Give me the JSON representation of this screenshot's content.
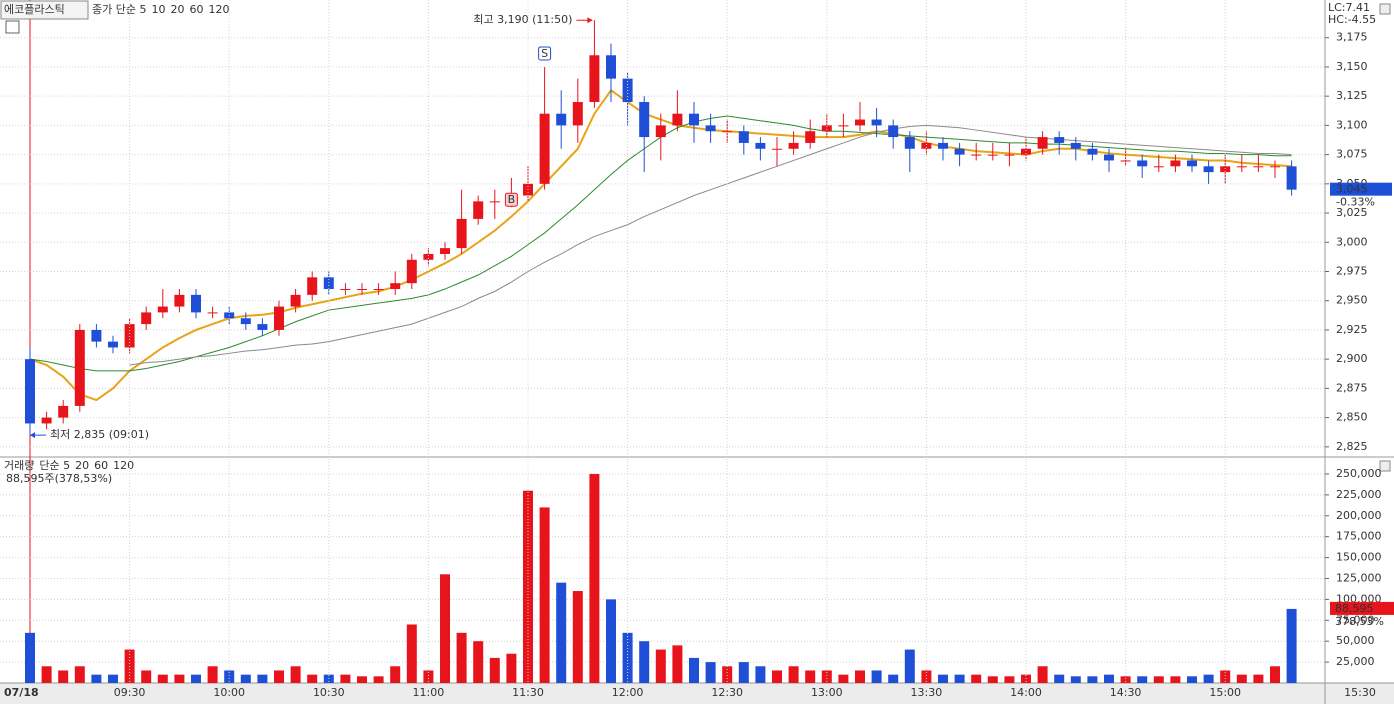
{
  "chart_data": [
    {
      "type": "candlestick",
      "title": "에코플라스틱",
      "legend_label": "종가 단순 5",
      "ma_legend": [
        {
          "name": "10",
          "color": "#1c1c8c"
        }
      ],
      "stats": [
        "LC:7.41",
        "HC:-4.55"
      ],
      "up_color": "#e8141c",
      "down_color": "#1f4fd6",
      "open": [
        2900,
        2845,
        2850,
        2860,
        2925,
        2915,
        2910,
        2930,
        2940,
        2945,
        2955,
        2940,
        2940,
        2935,
        2930,
        2925,
        2945,
        2955,
        2970,
        2960,
        2960,
        2960,
        2960,
        2965,
        2985,
        2990,
        2995,
        3020,
        3035,
        3035,
        3040,
        3050,
        3110,
        3100,
        3120,
        3160,
        3140,
        3120,
        3090,
        3100,
        3110,
        3100,
        3095,
        3095,
        3085,
        3080,
        3080,
        3085,
        3095,
        3100,
        3100,
        3105,
        3100,
        3090,
        3080,
        3085,
        3080,
        3075,
        3075,
        3075,
        3075,
        3080,
        3090,
        3085,
        3080,
        3075,
        3070,
        3070,
        3065,
        3065,
        3070,
        3065,
        3060,
        3065,
        3065,
        3065,
        3065
      ],
      "high": [
        2910,
        2855,
        2865,
        2930,
        2930,
        2920,
        2935,
        2945,
        2960,
        2960,
        2960,
        2945,
        2945,
        2940,
        2935,
        2950,
        2960,
        2975,
        2975,
        2965,
        2965,
        2965,
        2975,
        2990,
        2995,
        3000,
        3045,
        3040,
        3045,
        3055,
        3065,
        3150,
        3130,
        3140,
        3190,
        3170,
        3145,
        3125,
        3110,
        3130,
        3120,
        3110,
        3105,
        3100,
        3090,
        3090,
        3095,
        3105,
        3110,
        3110,
        3120,
        3115,
        3105,
        3095,
        3095,
        3090,
        3085,
        3085,
        3085,
        3085,
        3090,
        3095,
        3095,
        3090,
        3085,
        3080,
        3080,
        3075,
        3075,
        3075,
        3075,
        3070,
        3075,
        3075,
        3075,
        3070,
        3070
      ],
      "low": [
        2835,
        2840,
        2845,
        2855,
        2910,
        2905,
        2905,
        2925,
        2935,
        2940,
        2935,
        2935,
        2930,
        2925,
        2920,
        2920,
        2940,
        2950,
        2955,
        2955,
        2955,
        2955,
        2955,
        2960,
        2980,
        2985,
        2990,
        3015,
        3020,
        3030,
        3035,
        3045,
        3080,
        3085,
        3115,
        3120,
        3100,
        3060,
        3070,
        3095,
        3085,
        3085,
        3085,
        3075,
        3070,
        3065,
        3075,
        3080,
        3090,
        3090,
        3095,
        3090,
        3080,
        3060,
        3075,
        3070,
        3065,
        3070,
        3070,
        3065,
        3070,
        3075,
        3075,
        3070,
        3070,
        3060,
        3065,
        3055,
        3060,
        3060,
        3060,
        3050,
        3050,
        3060,
        3060,
        3055,
        3040
      ],
      "close": [
        2845,
        2850,
        2860,
        2925,
        2915,
        2910,
        2930,
        2940,
        2945,
        2955,
        2940,
        2940,
        2935,
        2930,
        2925,
        2945,
        2955,
        2970,
        2960,
        2960,
        2960,
        2960,
        2965,
        2985,
        2990,
        2995,
        3020,
        3035,
        3035,
        3040,
        3050,
        3110,
        3100,
        3120,
        3160,
        3140,
        3120,
        3090,
        3100,
        3110,
        3100,
        3095,
        3095,
        3085,
        3080,
        3080,
        3085,
        3095,
        3100,
        3100,
        3105,
        3100,
        3090,
        3080,
        3085,
        3080,
        3075,
        3075,
        3075,
        3075,
        3080,
        3090,
        3085,
        3080,
        3075,
        3070,
        3070,
        3065,
        3065,
        3070,
        3065,
        3060,
        3065,
        3065,
        3065,
        3065,
        3045
      ],
      "series": [
        {
          "name": "20",
          "color": "#e8a317",
          "values": [
            2900,
            2895,
            2885,
            2870,
            2865,
            2875,
            2890,
            2900,
            2910,
            2918,
            2925,
            2930,
            2935,
            2937,
            2938,
            2940,
            2944,
            2947,
            2950,
            2953,
            2956,
            2958,
            2962,
            2968,
            2975,
            2982,
            2990,
            3000,
            3010,
            3022,
            3035,
            3050,
            3065,
            3080,
            3110,
            3130,
            3120,
            3110,
            3105,
            3100,
            3098,
            3096,
            3095,
            3094,
            3093,
            3092,
            3091,
            3090,
            3090,
            3090,
            3092,
            3095,
            3093,
            3090,
            3085,
            3082,
            3080,
            3078,
            3077,
            3076,
            3075,
            3078,
            3080,
            3080,
            3078,
            3076,
            3075,
            3074,
            3073,
            3072,
            3071,
            3070,
            3070,
            3068,
            3067,
            3066,
            3065
          ]
        },
        {
          "name": "60",
          "color": "#2e8b2e",
          "values": [
            2900,
            2898,
            2895,
            2892,
            2890,
            2890,
            2890,
            2892,
            2895,
            2898,
            2902,
            2906,
            2910,
            2915,
            2920,
            2926,
            2932,
            2937,
            2942,
            2944,
            2946,
            2948,
            2950,
            2952,
            2955,
            2960,
            2966,
            2972,
            2980,
            2988,
            2998,
            3008,
            3020,
            3032,
            3045,
            3058,
            3070,
            3080,
            3090,
            3098,
            3103,
            3106,
            3108,
            3106,
            3104,
            3102,
            3100,
            3097,
            3095,
            3095,
            3094,
            3093,
            3092,
            3091,
            3090,
            3089,
            3088,
            3087,
            3086,
            3085,
            3085,
            3084,
            3084,
            3083,
            3082,
            3081,
            3080,
            3079,
            3078,
            3078,
            3077,
            3076,
            3076,
            3075,
            3075,
            3074,
            3074
          ]
        },
        {
          "name": "120",
          "color": "#8a8a8a",
          "values": [
            null,
            null,
            null,
            null,
            null,
            null,
            2895,
            2897,
            2898,
            2900,
            2902,
            2903,
            2905,
            2907,
            2908,
            2910,
            2912,
            2913,
            2915,
            2918,
            2921,
            2924,
            2927,
            2930,
            2935,
            2940,
            2945,
            2952,
            2958,
            2966,
            2975,
            2983,
            2990,
            2998,
            3005,
            3010,
            3015,
            3022,
            3028,
            3034,
            3040,
            3045,
            3050,
            3055,
            3060,
            3065,
            3070,
            3075,
            3080,
            3085,
            3090,
            3094,
            3097,
            3099,
            3100,
            3099,
            3098,
            3096,
            3094,
            3092,
            3090,
            3089,
            3088,
            3087,
            3086,
            3085,
            3084,
            3083,
            3082,
            3081,
            3080,
            3079,
            3078,
            3077,
            3076,
            3076,
            3075
          ]
        }
      ],
      "high_label": "최고 3,190 (11:50)",
      "low_label": "최저 2,835 (09:01)",
      "signals": [
        {
          "label": "B",
          "index": 29
        },
        {
          "label": "S",
          "index": 31
        }
      ],
      "last_price": 3045,
      "last_price_label": "3,045",
      "change_label": "-0.33%",
      "ylim": [
        2818,
        3203
      ],
      "yticks": [
        {
          "value": 2825,
          "label": "2,825"
        },
        {
          "value": 2850,
          "label": "2,850"
        },
        {
          "value": 2875,
          "label": "2,875"
        },
        {
          "value": 2900,
          "label": "2,900"
        },
        {
          "value": 2925,
          "label": "2,925"
        },
        {
          "value": 2950,
          "label": "2,950"
        },
        {
          "value": 2975,
          "label": "2,975"
        },
        {
          "value": 3000,
          "label": "3,000"
        },
        {
          "value": 3025,
          "label": "3,025"
        },
        {
          "value": 3050,
          "label": "3,050"
        },
        {
          "value": 3075,
          "label": "3,075"
        },
        {
          "value": 3100,
          "label": "3,100"
        },
        {
          "value": 3125,
          "label": "3,125"
        },
        {
          "value": 3150,
          "label": "3,150"
        },
        {
          "value": 3175,
          "label": "3,175"
        }
      ],
      "grid": true
    },
    {
      "type": "bar",
      "title": "거래량",
      "legend_label": "단순 5",
      "ma_legend": [
        {
          "name": "20",
          "color": "#e8a317"
        },
        {
          "name": "60",
          "color": "#2e8b2e"
        },
        {
          "name": "120",
          "color": "#8a8a8a"
        }
      ],
      "summary": "88,595주(378,53%)",
      "categories": [
        "07/18",
        null,
        null,
        null,
        null,
        null,
        "09:30",
        null,
        null,
        null,
        null,
        null,
        "10:00",
        null,
        null,
        null,
        null,
        null,
        "10:30",
        null,
        null,
        null,
        null,
        null,
        "11:00",
        null,
        null,
        null,
        null,
        null,
        "11:30",
        null,
        null,
        null,
        null,
        null,
        "12:00",
        null,
        null,
        null,
        null,
        null,
        "12:30",
        null,
        null,
        null,
        null,
        null,
        "13:00",
        null,
        null,
        null,
        null,
        null,
        "13:30",
        null,
        null,
        null,
        null,
        null,
        "14:00",
        null,
        null,
        null,
        null,
        null,
        "14:30",
        null,
        null,
        null,
        null,
        null,
        "15:00",
        null,
        null,
        null,
        null
      ],
      "x_end_label": "15:30",
      "values": [
        60000,
        20000,
        15000,
        20000,
        10000,
        10000,
        40000,
        15000,
        10000,
        10000,
        10000,
        20000,
        15000,
        10000,
        10000,
        15000,
        20000,
        10000,
        10000,
        10000,
        8000,
        8000,
        20000,
        70000,
        15000,
        130000,
        60000,
        50000,
        30000,
        35000,
        230000,
        210000,
        120000,
        110000,
        250000,
        100000,
        60000,
        50000,
        40000,
        45000,
        30000,
        25000,
        20000,
        25000,
        20000,
        15000,
        20000,
        15000,
        15000,
        10000,
        15000,
        15000,
        10000,
        40000,
        15000,
        10000,
        10000,
        10000,
        8000,
        8000,
        10000,
        20000,
        10000,
        8000,
        8000,
        10000,
        8000,
        8000,
        8000,
        8000,
        8000,
        10000,
        15000,
        10000,
        10000,
        20000,
        88595
      ],
      "last_value_label": "88,595",
      "last_ratio_label": "378,53%",
      "ylim": [
        0,
        266700
      ],
      "yticks": [
        {
          "value": 25000,
          "label": "25,000"
        },
        {
          "value": 50000,
          "label": "50,000"
        },
        {
          "value": 75000,
          "label": "75,000"
        },
        {
          "value": 100000,
          "label": "100,000"
        },
        {
          "value": 125000,
          "label": "125,000"
        },
        {
          "value": 150000,
          "label": "150,000"
        },
        {
          "value": 175000,
          "label": "175,000"
        },
        {
          "value": 200000,
          "label": "200,000"
        },
        {
          "value": 225000,
          "label": "225,000"
        },
        {
          "value": 250000,
          "label": "250,000"
        }
      ],
      "grid": true
    }
  ]
}
